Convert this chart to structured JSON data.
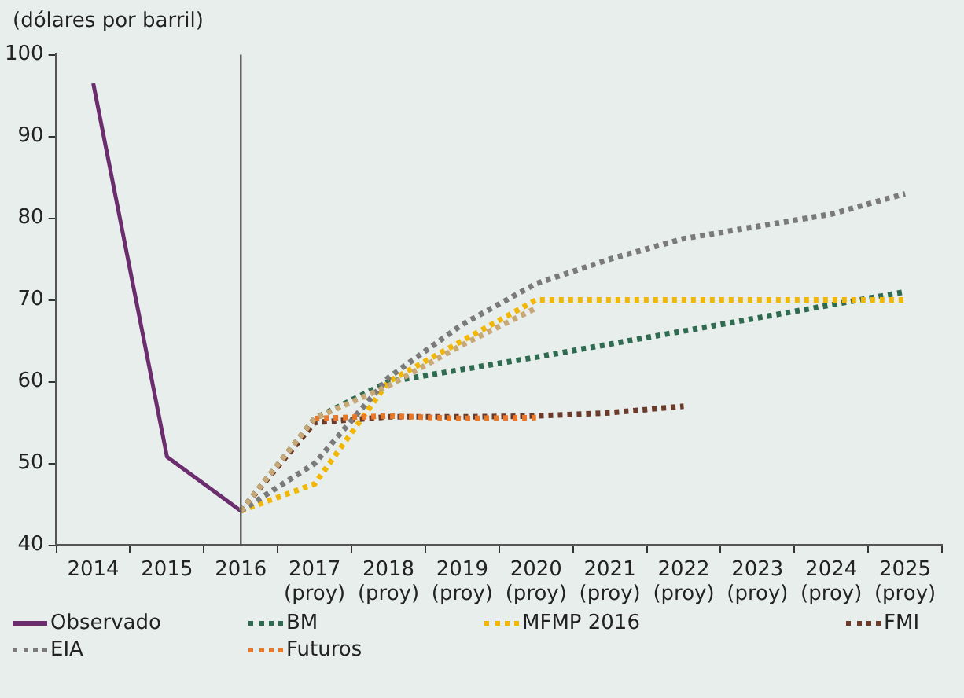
{
  "chart_data": {
    "type": "line",
    "ylabel": "(dólares por barril)",
    "categories": [
      "2014",
      "2015",
      "2016",
      "2017\n(proy)",
      "2018\n(proy)",
      "2019\n(proy)",
      "2020\n(proy)",
      "2021\n(proy)",
      "2022\n(proy)",
      "2023\n(proy)",
      "2024\n(proy)",
      "2025\n(proy)"
    ],
    "ylim": [
      40,
      100
    ],
    "yticks": [
      40,
      50,
      60,
      70,
      80,
      90,
      100
    ],
    "grid": false,
    "legend": "bottom",
    "marker": "none",
    "ref_lines": [
      {
        "axis": "x",
        "value": "2016",
        "color": "#555555",
        "line_style": "solid"
      }
    ],
    "series": [
      {
        "name": "Observado",
        "color": "#6b2d6e",
        "line_style": "solid",
        "values": [
          96.5,
          50.8,
          44.2,
          null,
          null,
          null,
          null,
          null,
          null,
          null,
          null,
          null
        ]
      },
      {
        "name": "BM",
        "color": "#2e6b50",
        "line_style": "dotted",
        "values": [
          null,
          null,
          44.2,
          55.5,
          60,
          61.5,
          63,
          64.6,
          66.2,
          67.8,
          69.4,
          71
        ]
      },
      {
        "name": "MFMP 2016",
        "color": "#f2b705",
        "line_style": "dotted",
        "values": [
          null,
          null,
          44.2,
          47.5,
          60,
          65,
          70,
          70,
          70,
          70,
          70,
          70
        ]
      },
      {
        "name": "FMI",
        "color": "#6b3a2a",
        "line_style": "dotted",
        "values": [
          null,
          null,
          44.2,
          55,
          55.7,
          55.7,
          55.8,
          56.2,
          57,
          null,
          null,
          null
        ]
      },
      {
        "name": "EIA",
        "color": "#7a7a7a",
        "line_style": "dotted",
        "values": [
          null,
          null,
          44.2,
          50,
          60.5,
          67,
          72,
          75,
          77.5,
          79,
          80.5,
          83
        ]
      },
      {
        "name": "Futuros",
        "color": "#e8792a",
        "line_style": "dotted",
        "values": [
          null,
          null,
          null,
          55.5,
          55.8,
          55.5,
          55.6,
          null,
          null,
          null,
          null,
          null
        ]
      },
      {
        "color": "#c9a878",
        "line_style": "dotted",
        "values": [
          null,
          null,
          44.2,
          55.5,
          59.5,
          64.5,
          69,
          null,
          null,
          null,
          null,
          null
        ]
      }
    ]
  }
}
